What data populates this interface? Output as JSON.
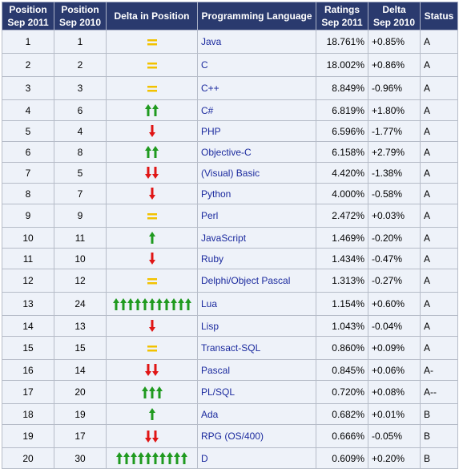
{
  "headers": {
    "pos2011": [
      "Position",
      "Sep 2011"
    ],
    "pos2010": [
      "Position",
      "Sep 2010"
    ],
    "delta_pos": [
      "Delta in Position"
    ],
    "language": [
      "Programming Language"
    ],
    "ratings": [
      "Ratings",
      "Sep 2011"
    ],
    "delta": [
      "Delta",
      "Sep 2010"
    ],
    "status": [
      "Status"
    ]
  },
  "colors": {
    "header_bg": "#2a3a6e",
    "cell_bg": "#eef2f9",
    "up_arrow": "#1f9a1f",
    "down_arrow": "#e01515",
    "equal": "#f2c200",
    "language_text": "#1b2a9e"
  },
  "rows": [
    {
      "pos2011": "1",
      "pos2010": "1",
      "change": "equal",
      "arrows": 0,
      "language": "Java",
      "rating": "18.761%",
      "delta": "+0.85%",
      "status": "A"
    },
    {
      "pos2011": "2",
      "pos2010": "2",
      "change": "equal",
      "arrows": 0,
      "language": "C",
      "rating": "18.002%",
      "delta": "+0.86%",
      "status": "A"
    },
    {
      "pos2011": "3",
      "pos2010": "3",
      "change": "equal",
      "arrows": 0,
      "language": "C++",
      "rating": "8.849%",
      "delta": "-0.96%",
      "status": "A"
    },
    {
      "pos2011": "4",
      "pos2010": "6",
      "change": "up",
      "arrows": 2,
      "language": "C#",
      "rating": "6.819%",
      "delta": "+1.80%",
      "status": "A"
    },
    {
      "pos2011": "5",
      "pos2010": "4",
      "change": "down",
      "arrows": 1,
      "language": "PHP",
      "rating": "6.596%",
      "delta": "-1.77%",
      "status": "A"
    },
    {
      "pos2011": "6",
      "pos2010": "8",
      "change": "up",
      "arrows": 2,
      "language": "Objective-C",
      "rating": "6.158%",
      "delta": "+2.79%",
      "status": "A"
    },
    {
      "pos2011": "7",
      "pos2010": "5",
      "change": "down",
      "arrows": 2,
      "language": "(Visual) Basic",
      "rating": "4.420%",
      "delta": "-1.38%",
      "status": "A"
    },
    {
      "pos2011": "8",
      "pos2010": "7",
      "change": "down",
      "arrows": 1,
      "language": "Python",
      "rating": "4.000%",
      "delta": "-0.58%",
      "status": "A"
    },
    {
      "pos2011": "9",
      "pos2010": "9",
      "change": "equal",
      "arrows": 0,
      "language": "Perl",
      "rating": "2.472%",
      "delta": "+0.03%",
      "status": "A"
    },
    {
      "pos2011": "10",
      "pos2010": "11",
      "change": "up",
      "arrows": 1,
      "language": "JavaScript",
      "rating": "1.469%",
      "delta": "-0.20%",
      "status": "A"
    },
    {
      "pos2011": "11",
      "pos2010": "10",
      "change": "down",
      "arrows": 1,
      "language": "Ruby",
      "rating": "1.434%",
      "delta": "-0.47%",
      "status": "A"
    },
    {
      "pos2011": "12",
      "pos2010": "12",
      "change": "equal",
      "arrows": 0,
      "language": "Delphi/Object Pascal",
      "rating": "1.313%",
      "delta": "-0.27%",
      "status": "A"
    },
    {
      "pos2011": "13",
      "pos2010": "24",
      "change": "up",
      "arrows": 11,
      "language": "Lua",
      "rating": "1.154%",
      "delta": "+0.60%",
      "status": "A"
    },
    {
      "pos2011": "14",
      "pos2010": "13",
      "change": "down",
      "arrows": 1,
      "language": "Lisp",
      "rating": "1.043%",
      "delta": "-0.04%",
      "status": "A"
    },
    {
      "pos2011": "15",
      "pos2010": "15",
      "change": "equal",
      "arrows": 0,
      "language": "Transact-SQL",
      "rating": "0.860%",
      "delta": "+0.09%",
      "status": "A"
    },
    {
      "pos2011": "16",
      "pos2010": "14",
      "change": "down",
      "arrows": 2,
      "language": "Pascal",
      "rating": "0.845%",
      "delta": "+0.06%",
      "status": "A-"
    },
    {
      "pos2011": "17",
      "pos2010": "20",
      "change": "up",
      "arrows": 3,
      "language": "PL/SQL",
      "rating": "0.720%",
      "delta": "+0.08%",
      "status": "A--"
    },
    {
      "pos2011": "18",
      "pos2010": "19",
      "change": "up",
      "arrows": 1,
      "language": "Ada",
      "rating": "0.682%",
      "delta": "+0.01%",
      "status": "B"
    },
    {
      "pos2011": "19",
      "pos2010": "17",
      "change": "down",
      "arrows": 2,
      "language": "RPG (OS/400)",
      "rating": "0.666%",
      "delta": "-0.05%",
      "status": "B"
    },
    {
      "pos2011": "20",
      "pos2010": "30",
      "change": "up",
      "arrows": 10,
      "language": "D",
      "rating": "0.609%",
      "delta": "+0.20%",
      "status": "B"
    }
  ]
}
